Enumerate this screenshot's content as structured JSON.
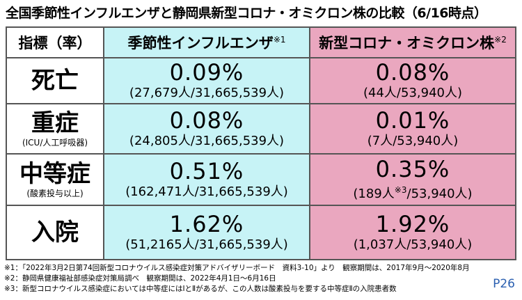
{
  "header": {
    "title": "全国季節性インフルエンザと静岡県新型コロナ・オミクロン株の比較（6/16時点）"
  },
  "table": {
    "columns": [
      {
        "text": "指標（率）"
      },
      {
        "text": "季節性インフルエンザ",
        "note": "※1"
      },
      {
        "text": "新型コロナ・オミクロン株",
        "note": "※2"
      }
    ],
    "rows": [
      {
        "label": "死亡",
        "cells": [
          {
            "value": "0.09%",
            "detail": [
              "(27,679人/31,665,539人)"
            ]
          },
          {
            "value": "0.08%",
            "detail": [
              "(44人/53,940人)"
            ]
          }
        ]
      },
      {
        "label": "重症",
        "sublabel": "(ICU/人工呼吸器)",
        "cells": [
          {
            "value": "0.08%",
            "detail": [
              "(24,805人/31,665,539人)"
            ]
          },
          {
            "value": "0.01%",
            "detail": [
              "(7人/53,940人)"
            ]
          }
        ]
      },
      {
        "label": "中等症",
        "sublabel": "(酸素投与以上)",
        "cells": [
          {
            "value": "0.51%",
            "detail": [
              "(162,471人/31,665,539人)"
            ]
          },
          {
            "value": "0.35%",
            "detail": [
              "(189人",
              "※3",
              "/53,940人)"
            ]
          }
        ]
      },
      {
        "label": "入院",
        "cells": [
          {
            "value": "1.62%",
            "detail": [
              "(51,2165人/31,665,539人)"
            ]
          },
          {
            "value": "1.92%",
            "detail": [
              "(1,037人/53,940人)"
            ]
          }
        ]
      }
    ]
  },
  "footnotes": [
    "※1：「2022年3月2日第74回新型コロナウイルス感染症対策アドバイザリーボード　資料3-10」より　観察期間は、2017年9月～2020年8月",
    "※2：静岡県健康福祉部感染症対策局調べ　観察期間は、2022年4月1日～6月16日",
    "※3：新型コロナウイルス感染症においては中等症にはⅠとⅡがあるが、この人数は酸素投与を要する中等症Ⅱの入院患者数"
  ],
  "page_number": "P26"
}
